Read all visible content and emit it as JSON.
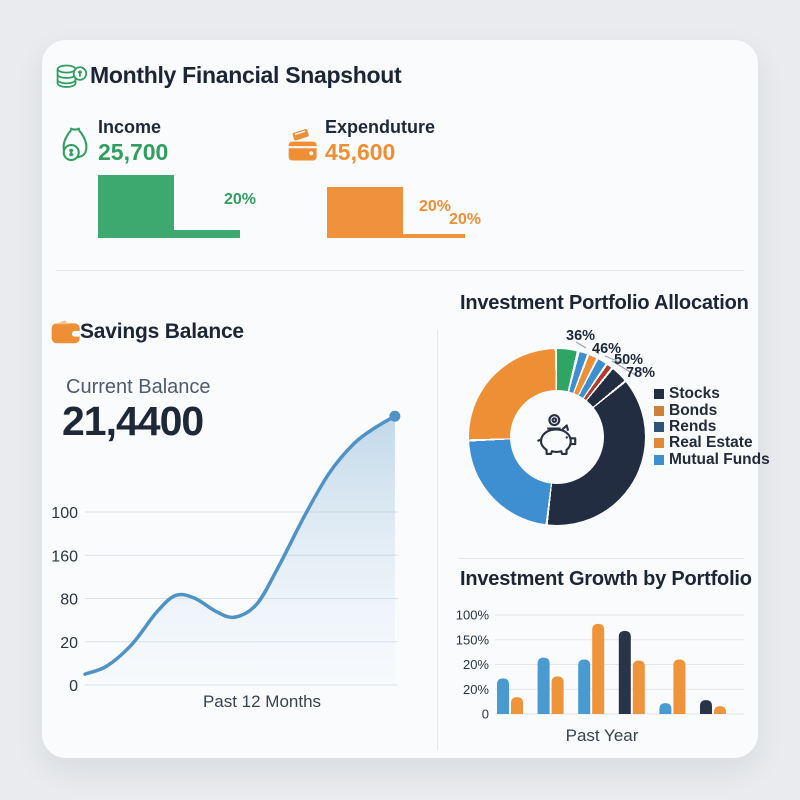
{
  "header": {
    "title": "Monthly Financial Snapshout"
  },
  "stats": {
    "income": {
      "label": "Income",
      "value": "25,700",
      "badge": "20%",
      "color": "#2f9e5f",
      "bar_color": "#3da96e"
    },
    "expenditure": {
      "label": "Expenduture",
      "value": "45,600",
      "badge1": "20%",
      "badge2": "20%",
      "color": "#ee8f35",
      "bar_color": "#f0923b"
    }
  },
  "savings": {
    "title": "Savings Balance",
    "balance_label": "Current Balance",
    "balance_value": "21,4400",
    "x_label": "Past 12 Months"
  },
  "portfolio": {
    "title": "Investment Portfolio Allocation",
    "callouts": [
      "36%",
      "46%",
      "50%",
      "78%"
    ],
    "legend": [
      {
        "label": "Stocks",
        "color": "#222d42"
      },
      {
        "label": "Bonds",
        "color": "#c9813b"
      },
      {
        "label": "Rends",
        "color": "#2f5378"
      },
      {
        "label": "Real Estate",
        "color": "#e08a38"
      },
      {
        "label": "Mutual Funds",
        "color": "#3d8fd1"
      }
    ]
  },
  "growth": {
    "title": "Investment Growth by Portfolio",
    "x_label": "Past Year"
  },
  "chart_data": [
    {
      "id": "income_mini_bar",
      "type": "bar",
      "title": "Income",
      "values": [
        100,
        12
      ],
      "data_label": "20%",
      "color": "#3da96e"
    },
    {
      "id": "expenditure_mini_bar",
      "type": "bar",
      "title": "Expenduture",
      "values": [
        100,
        6
      ],
      "data_labels": [
        "20%",
        "20%"
      ],
      "color": "#f0923b"
    },
    {
      "id": "savings_balance_trend",
      "type": "area",
      "title": "Savings Balance",
      "xlabel": "Past 12 Months",
      "y_ticks": [
        "100",
        "160",
        "80",
        "20",
        "0"
      ],
      "line_color": "#4f93c6",
      "fill_top": "rgba(148,187,216,0.55)",
      "fill_bottom": "rgba(205,228,242,0.06)",
      "grid": true,
      "end_dot": true,
      "points_pct": [
        [
          0,
          4
        ],
        [
          7,
          7
        ],
        [
          15,
          15
        ],
        [
          23,
          27
        ],
        [
          29,
          33
        ],
        [
          35,
          32
        ],
        [
          42,
          27
        ],
        [
          48,
          25
        ],
        [
          55,
          30
        ],
        [
          62,
          44
        ],
        [
          70,
          62
        ],
        [
          78,
          78
        ],
        [
          86,
          89
        ],
        [
          93,
          95
        ],
        [
          99,
          99
        ]
      ]
    },
    {
      "id": "investment_portfolio_allocation",
      "type": "pie",
      "title": "Investment Portfolio Allocation",
      "donut": true,
      "callout_labels": [
        "36%",
        "46%",
        "50%",
        "78%"
      ],
      "legend_entries": [
        "Stocks",
        "Bonds",
        "Rends",
        "Real Estate",
        "Mutual Funds"
      ],
      "slices_deg_clockwise_from_top": [
        {
          "name": "green-slice",
          "color": "#2ea562",
          "from": 0,
          "to": 13
        },
        {
          "name": "blue-sliver-1",
          "color": "#3d8fd1",
          "from": 15,
          "to": 20
        },
        {
          "name": "orange-sliver",
          "color": "#ee8f35",
          "from": 21.5,
          "to": 26.5
        },
        {
          "name": "blue-sliver-2",
          "color": "#3d8fd1",
          "from": 28,
          "to": 33.5
        },
        {
          "name": "red-sliver",
          "color": "#b23b2c",
          "from": 35,
          "to": 38
        },
        {
          "name": "stocks-small",
          "color": "#222d42",
          "from": 39.5,
          "to": 50
        },
        {
          "name": "stocks",
          "color": "#222d42",
          "from": 51.5,
          "to": 186
        },
        {
          "name": "mutual-funds",
          "color": "#3d8fd1",
          "from": 187.5,
          "to": 267
        },
        {
          "name": "bonds",
          "color": "#ee8f35",
          "from": 268.5,
          "to": 358.5
        }
      ]
    },
    {
      "id": "investment_growth_by_portfolio",
      "type": "bar",
      "title": "Investment Growth by Portfolio",
      "xlabel": "Past Year",
      "y_ticks": [
        "100%",
        "150%",
        "20%",
        "20%",
        "0"
      ],
      "value_unit": "percent_of_top_gridline",
      "grid": true,
      "groups": [
        {
          "bars": [
            {
              "color": "#4a9ad2",
              "value": 36
            },
            {
              "color": "#f0943c",
              "value": 17
            }
          ]
        },
        {
          "bars": [
            {
              "color": "#4a9ad2",
              "value": 57
            },
            {
              "color": "#f0943c",
              "value": 38
            }
          ]
        },
        {
          "bars": [
            {
              "color": "#4a9ad2",
              "value": 55
            },
            {
              "color": "#f0943c",
              "value": 91
            }
          ]
        },
        {
          "bars": [
            {
              "color": "#2a3448",
              "value": 84
            },
            {
              "color": "#f0943c",
              "value": 54
            }
          ]
        },
        {
          "bars": [
            {
              "color": "#4a9ad2",
              "value": 11
            },
            {
              "color": "#f0943c",
              "value": 55
            }
          ]
        },
        {
          "bars": [
            {
              "color": "#2a3448",
              "value": 14
            },
            {
              "color": "#f0943c",
              "value": 8
            }
          ]
        }
      ]
    }
  ]
}
